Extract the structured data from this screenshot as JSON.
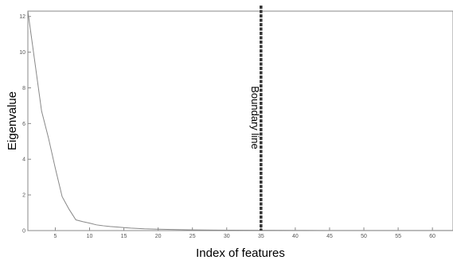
{
  "chart_data": {
    "type": "line",
    "title": "",
    "xlabel": "Index of features",
    "ylabel": "Eigenvalue",
    "xlim": [
      1,
      63
    ],
    "ylim": [
      0,
      12.3
    ],
    "x_ticks": [
      5,
      10,
      15,
      20,
      25,
      30,
      35,
      40,
      45,
      50,
      55,
      60
    ],
    "x_tick_labels": [
      "5",
      "10",
      "15",
      "20",
      "25",
      "30",
      "35",
      "40",
      "45",
      "50",
      "55",
      "60"
    ],
    "y_ticks": [
      0,
      2,
      4,
      6,
      8,
      10,
      12
    ],
    "y_tick_labels": [
      "0",
      "2",
      "4",
      "6",
      "8",
      "10",
      "12"
    ],
    "grid": false,
    "series": [
      {
        "color": "#888888",
        "x": [
          1,
          2,
          3,
          4,
          5,
          6,
          7,
          8,
          9,
          10,
          11,
          12,
          13,
          14,
          15,
          16,
          18,
          20,
          22,
          25,
          28,
          30,
          35,
          40,
          45,
          50,
          55,
          60,
          63
        ],
        "y": [
          12.3,
          9.5,
          6.7,
          5.2,
          3.5,
          1.9,
          1.2,
          0.6,
          0.5,
          0.42,
          0.32,
          0.27,
          0.23,
          0.2,
          0.17,
          0.14,
          0.1,
          0.08,
          0.06,
          0.04,
          0.03,
          0.025,
          0.015,
          0.01,
          0.008,
          0.006,
          0.005,
          0.004,
          0.003
        ]
      }
    ],
    "annotations": [
      {
        "type": "vertical-line",
        "x": 35,
        "style": "dashed",
        "color": "#333333",
        "label": "Boundary line"
      }
    ]
  }
}
